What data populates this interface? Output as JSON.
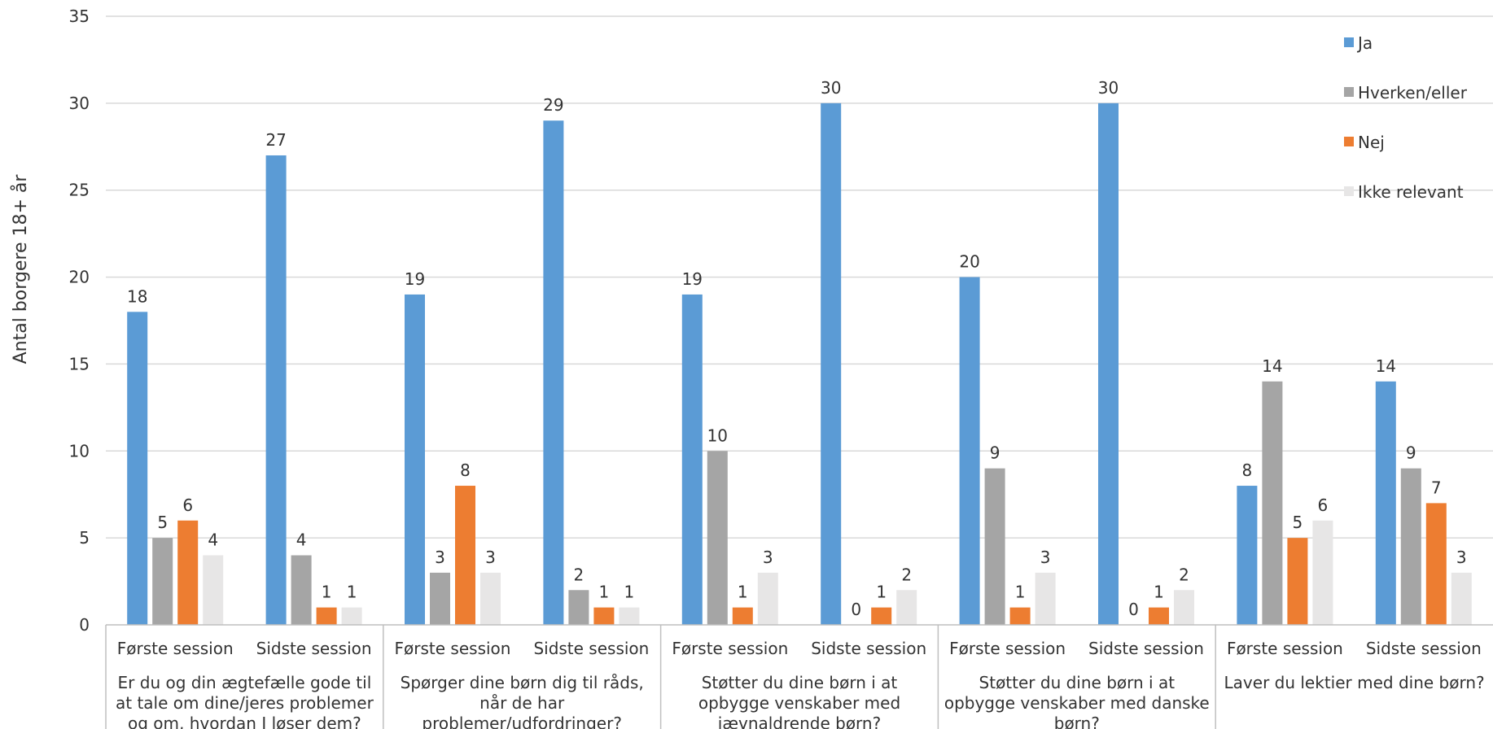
{
  "chart_data": {
    "type": "bar",
    "ylabel": "Antal borgere 18+ år",
    "ylim": [
      0,
      35
    ],
    "yticks": [
      0,
      5,
      10,
      15,
      20,
      25,
      30,
      35
    ],
    "grid": true,
    "legend_position": "top-right",
    "groups": [
      {
        "question_lines": [
          "Er du og din ægtefælle gode til",
          "at tale om dine/jeres problemer",
          "og om, hvordan I løser dem?"
        ],
        "sessions": [
          "Første session",
          "Sidste session"
        ]
      },
      {
        "question_lines": [
          "Spørger dine børn dig til råds,",
          "når de har",
          "problemer/udfordringer?"
        ],
        "sessions": [
          "Første session",
          "Sidste session"
        ]
      },
      {
        "question_lines": [
          "Støtter du dine børn i at",
          "opbygge venskaber med",
          "jævnaldrende børn?"
        ],
        "sessions": [
          "Første session",
          "Sidste session"
        ]
      },
      {
        "question_lines": [
          "Støtter du dine børn i at",
          "opbygge venskaber med danske",
          "børn?"
        ],
        "sessions": [
          "Første session",
          "Sidste session"
        ]
      },
      {
        "question_lines": [
          "Laver du lektier med dine børn?"
        ],
        "sessions": [
          "Første session",
          "Sidste session"
        ]
      }
    ],
    "series": [
      {
        "name": "Ja",
        "color": "#5B9BD5",
        "values": [
          18,
          27,
          19,
          29,
          19,
          30,
          20,
          30,
          8,
          14
        ]
      },
      {
        "name": "Hverken/eller",
        "color": "#A5A5A5",
        "values": [
          5,
          4,
          3,
          2,
          10,
          0,
          9,
          0,
          14,
          9
        ]
      },
      {
        "name": "Nej",
        "color": "#ED7D31",
        "values": [
          6,
          1,
          8,
          1,
          1,
          1,
          1,
          1,
          5,
          7
        ]
      },
      {
        "name": "Ikke relevant",
        "color": "#E7E6E6",
        "values": [
          4,
          1,
          3,
          1,
          3,
          2,
          3,
          2,
          6,
          3
        ]
      }
    ]
  }
}
